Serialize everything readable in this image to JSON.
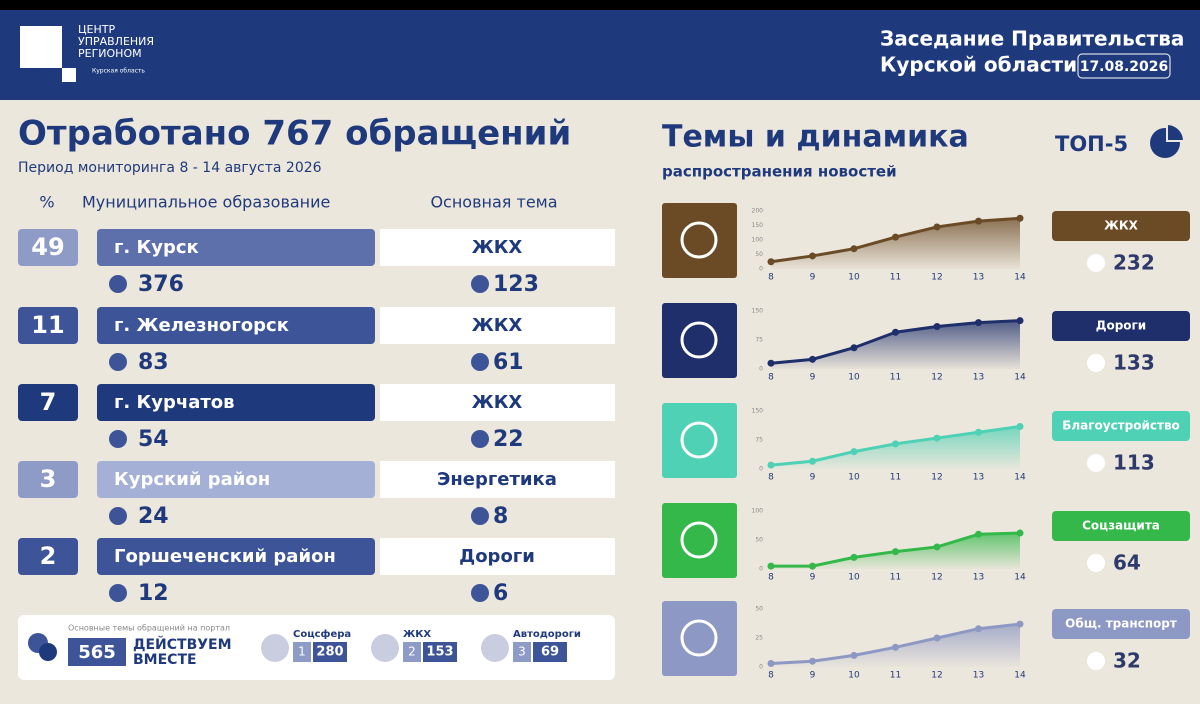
{
  "header": {
    "logo": [
      "ЦЕНТР",
      "УПРАВЛЕНИЯ",
      "РЕГИОНОМ"
    ],
    "region": "Курская область",
    "event": [
      "Заседание Правительства",
      "Курской области"
    ],
    "date": "17.08.2026"
  },
  "summary": {
    "title": "Отработано 767 обращений",
    "period": "Период мониторинга 8 - 14 августа 2026"
  },
  "table": {
    "columns": [
      "%",
      "Муниципальное образование",
      "Основная тема"
    ],
    "rows": [
      [
        49,
        "г. Курск",
        376,
        "ЖКХ",
        123
      ],
      [
        11,
        "г. Железногорск",
        83,
        "ЖКХ",
        61
      ],
      [
        7,
        "г. Курчатов",
        54,
        "ЖКХ",
        22
      ],
      [
        3,
        "Курский район",
        24,
        "Энергетика",
        8
      ],
      [
        2,
        "Горшеченский район",
        12,
        "Дороги",
        6
      ]
    ]
  },
  "portal": {
    "caption": "Основные темы обращений на портал",
    "total": 565,
    "brand": [
      "ДЕЙСТВУЕМ",
      "ВМЕСТЕ"
    ],
    "topics": [
      {
        "name": "Соцсфера",
        "rank": 1,
        "count": 280
      },
      {
        "name": "ЖКХ",
        "rank": 2,
        "count": 153
      },
      {
        "name": "Автодороги",
        "rank": 3,
        "count": 69
      }
    ]
  },
  "dynamics": {
    "title": "Темы и динамика",
    "subtitle": "распространения новостей",
    "top": "ТОП-5"
  },
  "chart_data": [
    {
      "type": "area",
      "categories": [
        "8",
        "9",
        "10",
        "11",
        "12",
        "13",
        "14"
      ],
      "ylim": [
        0,
        200
      ],
      "yticks": [
        0,
        50,
        100,
        150,
        200
      ],
      "total": 232,
      "series": [
        {
          "name": "ЖКХ",
          "color": "#6b4a26",
          "values": [
            25,
            45,
            70,
            110,
            145,
            165,
            175
          ]
        }
      ]
    },
    {
      "type": "area",
      "categories": [
        "8",
        "9",
        "10",
        "11",
        "12",
        "13",
        "14"
      ],
      "ylim": [
        0,
        150
      ],
      "yticks": [
        0,
        75,
        150
      ],
      "total": 133,
      "series": [
        {
          "name": "Дороги",
          "color": "#1e2f6b",
          "values": [
            15,
            25,
            55,
            95,
            110,
            120,
            125
          ]
        }
      ]
    },
    {
      "type": "area",
      "categories": [
        "8",
        "9",
        "10",
        "11",
        "12",
        "13",
        "14"
      ],
      "ylim": [
        0,
        150
      ],
      "yticks": [
        0,
        75,
        150
      ],
      "total": 113,
      "series": [
        {
          "name": "Благоустройство",
          "color": "#4fd1b5",
          "values": [
            10,
            20,
            45,
            65,
            80,
            95,
            110
          ]
        }
      ]
    },
    {
      "type": "area",
      "categories": [
        "8",
        "9",
        "10",
        "11",
        "12",
        "13",
        "14"
      ],
      "ylim": [
        0,
        100
      ],
      "yticks": [
        0,
        50,
        100
      ],
      "total": 64,
      "series": [
        {
          "name": "Соцзащита",
          "color": "#34b84a",
          "values": [
            5,
            5,
            20,
            30,
            38,
            60,
            62
          ]
        }
      ]
    },
    {
      "type": "area",
      "categories": [
        "8",
        "9",
        "10",
        "11",
        "12",
        "13",
        "14"
      ],
      "ylim": [
        0,
        50
      ],
      "yticks": [
        0,
        25,
        50
      ],
      "total": 32,
      "series": [
        {
          "name": "Общ. транспорт",
          "color": "#8e98c4",
          "values": [
            3,
            5,
            10,
            17,
            25,
            33,
            37
          ]
        }
      ]
    }
  ]
}
